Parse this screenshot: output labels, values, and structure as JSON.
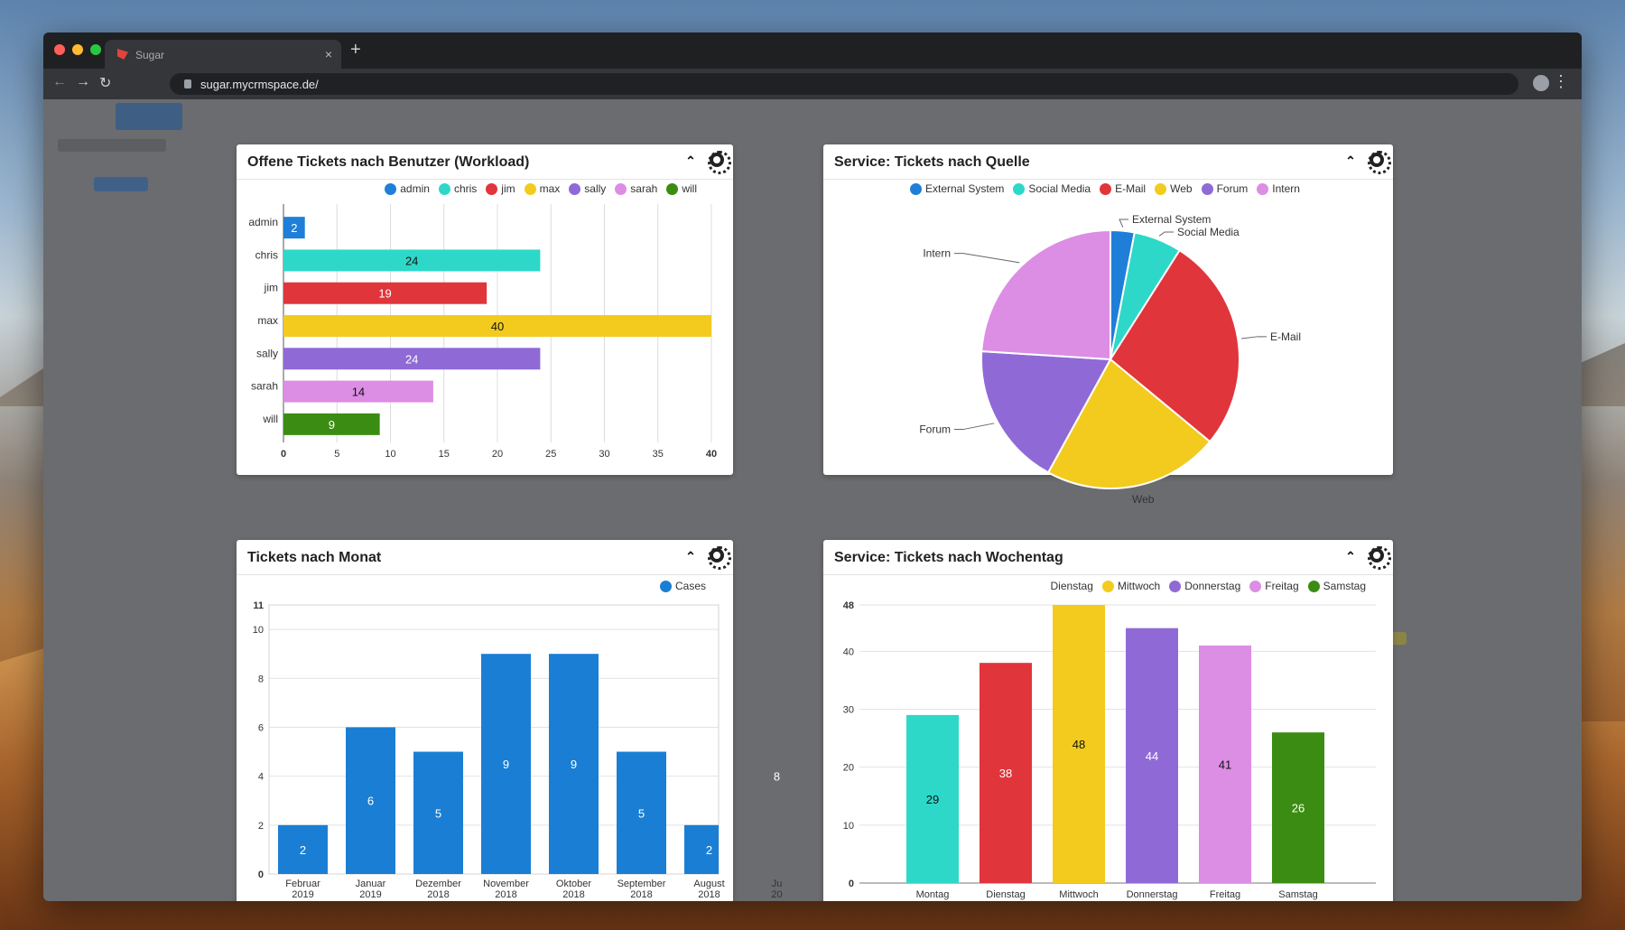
{
  "browser": {
    "tab_title": "Sugar",
    "close": "×",
    "new_tab": "+",
    "url": "sugar.mycrmspace.de/",
    "back": "←",
    "forward": "→",
    "reload": "↻",
    "menu": "⋮",
    "traffic": {
      "red": "#ff5f57",
      "yellow": "#febc2e",
      "green": "#28c840"
    }
  },
  "panels": [
    {
      "title": "Offene Tickets nach Benutzer (Workload)"
    },
    {
      "title": "Service: Tickets nach Quelle"
    },
    {
      "title": "Tickets nach Monat"
    },
    {
      "title": "Service: Tickets nach Wochentag"
    }
  ],
  "icons": {
    "collapse": "chevron-up-icon",
    "settings": "gear-icon"
  },
  "chart_data": [
    {
      "type": "bar",
      "orientation": "horizontal",
      "categories": [
        "admin",
        "chris",
        "jim",
        "max",
        "sally",
        "sarah",
        "will"
      ],
      "values": [
        2,
        24,
        19,
        40,
        24,
        14,
        9
      ],
      "colors": [
        "#1f7fd8",
        "#2ed8c8",
        "#e0353b",
        "#f2cb1e",
        "#8f6ad6",
        "#dc8de4",
        "#3b8c13"
      ],
      "legend": [
        "admin",
        "chris",
        "jim",
        "max",
        "sally",
        "sarah",
        "will"
      ],
      "xlim": [
        0,
        40
      ],
      "xticks": [
        0,
        5,
        10,
        15,
        20,
        25,
        30,
        35,
        40
      ],
      "legend_position": "top-right",
      "grid": true
    },
    {
      "type": "pie",
      "labels": [
        "External System",
        "Social Media",
        "E-Mail",
        "Web",
        "Forum",
        "Intern"
      ],
      "values": [
        3,
        6,
        27,
        22,
        18,
        24
      ],
      "colors": [
        "#1f7fd8",
        "#2ed8c8",
        "#e0353b",
        "#f2cb1e",
        "#8f6ad6",
        "#dc8de4"
      ],
      "legend_position": "top"
    },
    {
      "type": "bar",
      "categories": [
        [
          "Februar",
          "2019"
        ],
        [
          "Januar",
          "2019"
        ],
        [
          "Dezember",
          "2018"
        ],
        [
          "November",
          "2018"
        ],
        [
          "Oktober",
          "2018"
        ],
        [
          "September",
          "2018"
        ],
        [
          "August",
          "2018"
        ],
        [
          "Ju",
          "20"
        ]
      ],
      "values": [
        2,
        6,
        5,
        9,
        9,
        5,
        2,
        8
      ],
      "value_labels": [
        "2",
        "6",
        "5",
        "9",
        "9",
        "5",
        "2",
        "8"
      ],
      "series": [
        {
          "name": "Cases",
          "color": "#1a7fd4"
        }
      ],
      "ylim": [
        0,
        11
      ],
      "yticks": [
        0,
        2,
        4,
        6,
        8,
        10,
        11
      ],
      "legend_position": "top-right",
      "grid": true
    },
    {
      "type": "bar",
      "categories": [
        "Montag",
        "Dienstag",
        "Mittwoch",
        "Donnerstag",
        "Freitag",
        "Samstag"
      ],
      "values": [
        29,
        38,
        48,
        44,
        41,
        26
      ],
      "colors": [
        "#2ed8c8",
        "#e0353b",
        "#f2cb1e",
        "#8f6ad6",
        "#dc8de4",
        "#3b8c13"
      ],
      "legend": [
        {
          "name": "Dienstag",
          "color": null
        },
        {
          "name": "Mittwoch",
          "color": "#f2cb1e"
        },
        {
          "name": "Donnerstag",
          "color": "#8f6ad6"
        },
        {
          "name": "Freitag",
          "color": "#dc8de4"
        },
        {
          "name": "Samstag",
          "color": "#3b8c13"
        }
      ],
      "ylim": [
        0,
        48
      ],
      "yticks": [
        0,
        10,
        20,
        30,
        40,
        48
      ],
      "legend_position": "top-right",
      "grid": true
    }
  ]
}
